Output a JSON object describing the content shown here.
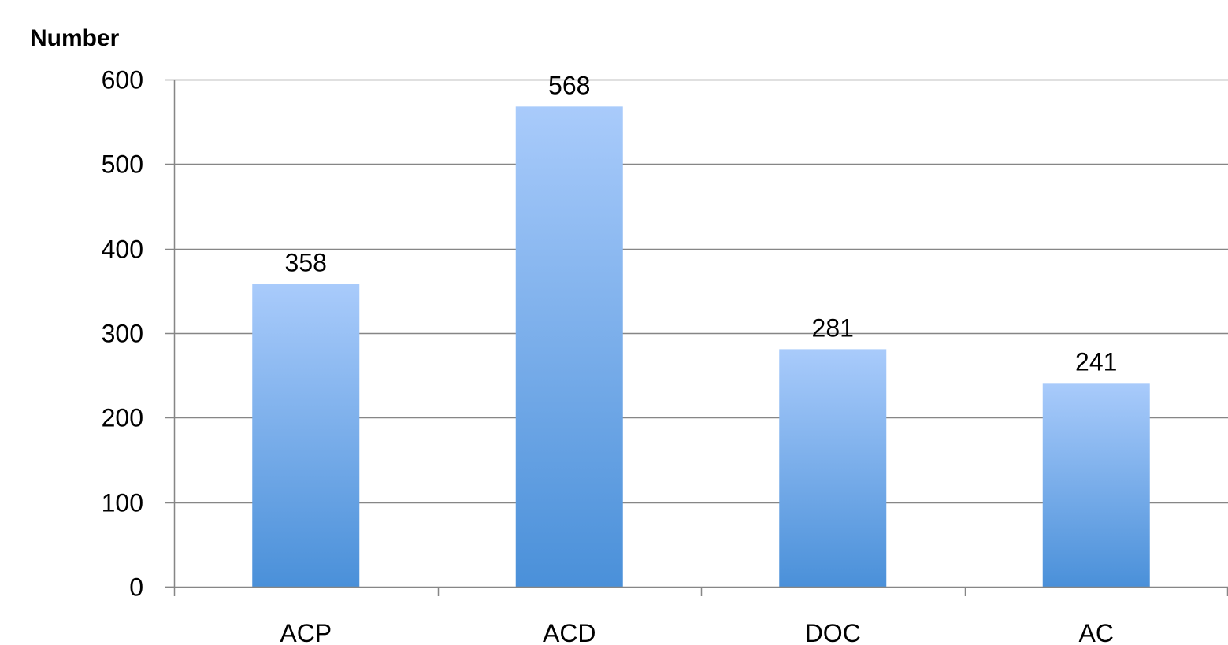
{
  "chart_data": {
    "type": "bar",
    "title": "",
    "xlabel": "",
    "ylabel": "Number",
    "categories": [
      "ACP",
      "ACD",
      "DOC",
      "AC"
    ],
    "values": [
      358,
      568,
      281,
      241
    ],
    "ylim": [
      0,
      600
    ],
    "yticks": [
      0,
      100,
      200,
      300,
      400,
      500,
      600
    ],
    "ytick_labels": [
      "0",
      "100",
      "200",
      "300",
      "400",
      "500",
      "600"
    ],
    "data_labels": [
      "358",
      "568",
      "281",
      "241"
    ],
    "grid": true,
    "legend": "none",
    "colors": {
      "bar_top": "#a9cbfb",
      "bar_bottom": "#4a90d9",
      "gridline": "#868686",
      "axis": "#868686",
      "text": "#000000"
    }
  }
}
